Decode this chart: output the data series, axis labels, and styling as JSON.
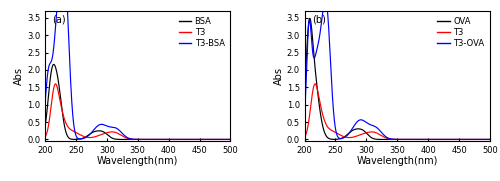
{
  "panel_a": {
    "label": "(a)",
    "legend": [
      "BSA",
      "T3",
      "T3-BSA"
    ],
    "colors": [
      "black",
      "red",
      "blue"
    ],
    "xlabel": "Wavelength(nm)",
    "ylabel": "Abs",
    "xlim": [
      200,
      500
    ],
    "ylim": [
      -0.05,
      3.7
    ],
    "yticks": [
      0.0,
      0.5,
      1.0,
      1.5,
      2.0,
      2.5,
      3.0,
      3.5
    ],
    "xticks": [
      200,
      250,
      300,
      350,
      400,
      450,
      500
    ]
  },
  "panel_b": {
    "label": "(b)",
    "legend": [
      "OVA",
      "T3",
      "T3-OVA"
    ],
    "colors": [
      "black",
      "red",
      "blue"
    ],
    "xlabel": "Wavelength(nm)",
    "ylabel": "Abs",
    "xlim": [
      200,
      500
    ],
    "ylim": [
      -0.05,
      3.7
    ],
    "yticks": [
      0.0,
      0.5,
      1.0,
      1.5,
      2.0,
      2.5,
      3.0,
      3.5
    ],
    "xticks": [
      200,
      250,
      300,
      350,
      400,
      450,
      500
    ]
  }
}
